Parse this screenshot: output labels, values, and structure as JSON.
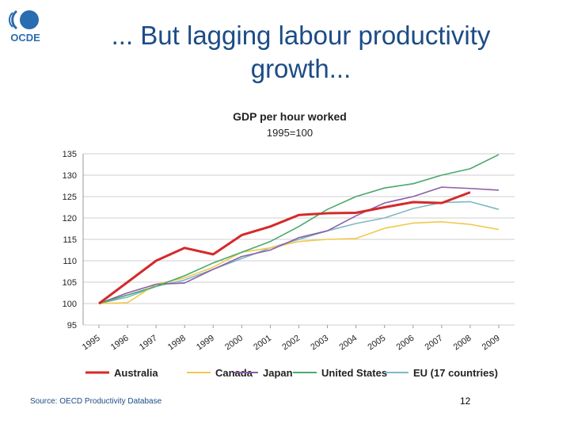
{
  "slide": {
    "title_line1": "... But lagging labour productivity",
    "title_line2": "growth...",
    "logo_text": "OCDE",
    "source": "Source: OECD Productivity Database",
    "page_number": "12"
  },
  "chart_data": {
    "type": "line",
    "title": "GDP per hour worked",
    "subtitle": "1995=100",
    "xlabel": "",
    "ylabel": "",
    "x": [
      "1995",
      "1996",
      "1997",
      "1998",
      "1999",
      "2000",
      "2001",
      "2002",
      "2003",
      "2004",
      "2005",
      "2006",
      "2007",
      "2008",
      "2009"
    ],
    "ylim": [
      95,
      135
    ],
    "yticks": [
      95,
      100,
      105,
      110,
      115,
      120,
      125,
      130,
      135
    ],
    "grid": true,
    "legend_position": "bottom",
    "series": [
      {
        "name": "Australia",
        "color": "#d42a2a",
        "values": [
          100,
          105,
          110,
          113,
          111.5,
          116,
          118,
          120.7,
          121.1,
          121.2,
          122.5,
          123.7,
          123.5,
          126,
          null
        ],
        "x_start": 0
      },
      {
        "name": "Canada",
        "color": "#f2c84b",
        "values": [
          100,
          100.2,
          104.5,
          106,
          108.5,
          112,
          113,
          114.5,
          115,
          115.2,
          117.6,
          118.8,
          119.1,
          118.5,
          117.3
        ]
      },
      {
        "name": "Japan",
        "color": "#8b5fa8",
        "values": [
          100,
          102.5,
          104.5,
          104.8,
          108,
          111,
          112.5,
          115.4,
          117,
          120.5,
          123.5,
          125,
          127.2,
          126.9,
          126.5
        ]
      },
      {
        "name": "United States",
        "color": "#4aa96c",
        "values": [
          100,
          102,
          104,
          106.5,
          109.5,
          112,
          114.5,
          118,
          122,
          125,
          127,
          128,
          130,
          131.5,
          134.8
        ]
      },
      {
        "name": "EU (17 countries)",
        "color": "#7fb8c4",
        "values": [
          100,
          101.5,
          104,
          105.5,
          108,
          110.5,
          113,
          115,
          117,
          118.7,
          120,
          122.2,
          123.6,
          123.8,
          122
        ]
      }
    ]
  }
}
